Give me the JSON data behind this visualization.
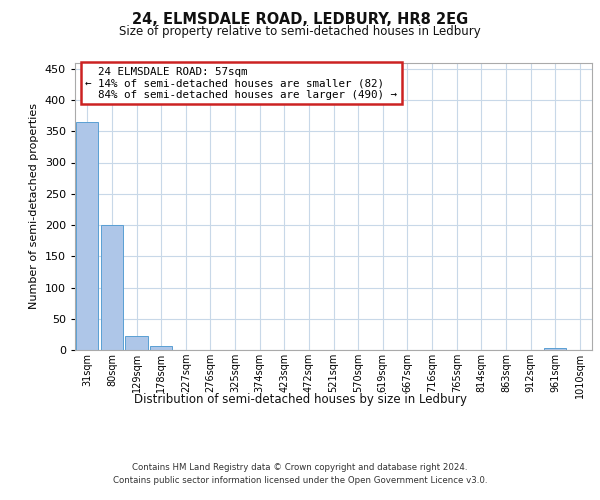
{
  "title": "24, ELMSDALE ROAD, LEDBURY, HR8 2EG",
  "subtitle": "Size of property relative to semi-detached houses in Ledbury",
  "xlabel": "Distribution of semi-detached houses by size in Ledbury",
  "ylabel": "Number of semi-detached properties",
  "property_size": 57,
  "property_label": "24 ELMSDALE ROAD: 57sqm",
  "pct_smaller": 14,
  "pct_larger": 84,
  "count_smaller": 82,
  "count_larger": 490,
  "bin_labels": [
    "31sqm",
    "80sqm",
    "129sqm",
    "178sqm",
    "227sqm",
    "276sqm",
    "325sqm",
    "374sqm",
    "423sqm",
    "472sqm",
    "521sqm",
    "570sqm",
    "619sqm",
    "667sqm",
    "716sqm",
    "765sqm",
    "814sqm",
    "863sqm",
    "912sqm",
    "961sqm",
    "1010sqm"
  ],
  "bar_values": [
    365,
    200,
    23,
    6,
    0,
    0,
    0,
    0,
    0,
    0,
    0,
    0,
    0,
    0,
    0,
    0,
    0,
    0,
    0,
    4,
    0
  ],
  "bar_color": "#aec6e8",
  "bar_edge_color": "#5a9fd4",
  "annotation_box_color": "#ffffff",
  "annotation_box_edge": "#cc2222",
  "ylim": [
    0,
    460
  ],
  "yticks": [
    0,
    50,
    100,
    150,
    200,
    250,
    300,
    350,
    400,
    450
  ],
  "bg_color": "#ffffff",
  "grid_color": "#c8d8e8",
  "footer_line1": "Contains HM Land Registry data © Crown copyright and database right 2024.",
  "footer_line2": "Contains public sector information licensed under the Open Government Licence v3.0."
}
